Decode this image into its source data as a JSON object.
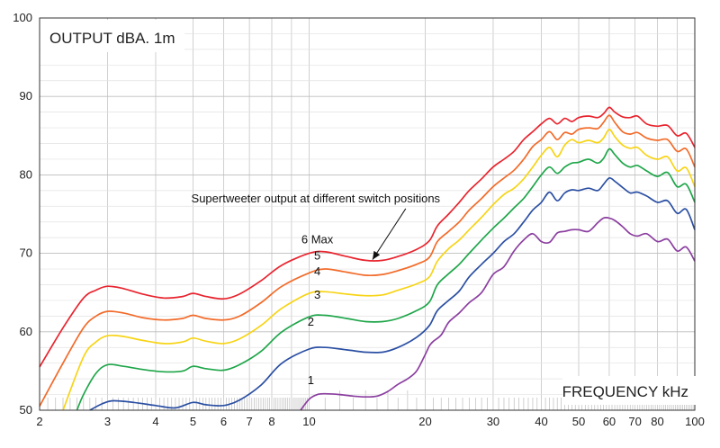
{
  "chart_data": {
    "type": "line",
    "title": "OUTPUT dBA. 1m",
    "xlabel": "FREQUENCY kHz",
    "ylabel": "",
    "xscale": "log",
    "xlim": [
      2,
      100
    ],
    "ylim": [
      50,
      100
    ],
    "x_ticks": [
      2,
      3,
      4,
      5,
      6,
      7,
      8,
      10,
      20,
      30,
      40,
      50,
      60,
      70,
      80,
      100
    ],
    "x_tick_labels": [
      "2",
      "3",
      "4",
      "5",
      "6",
      "7",
      "8",
      "10",
      "20",
      "30",
      "40",
      "50",
      "60",
      "70",
      "80",
      "100"
    ],
    "y_ticks": [
      50,
      60,
      70,
      80,
      90,
      100
    ],
    "y_tick_labels": [
      "50",
      "60",
      "70",
      "80",
      "90",
      "100"
    ],
    "grid": true,
    "legend": "none",
    "annotation": {
      "text": "Supertweeter output at different switch positions",
      "x": 10.4,
      "y": 76.5,
      "arrow_to": {
        "x": 14.6,
        "y": 69.2
      }
    },
    "series": [
      {
        "name": "6 Max",
        "color": "#e8242e",
        "label_at": {
          "x": 10.5,
          "y": 71.3
        },
        "x": [
          2,
          2.3,
          2.6,
          2.8,
          3,
          3.3,
          3.7,
          4.2,
          4.7,
          5,
          5.4,
          6,
          6.6,
          7.5,
          8.5,
          10,
          11,
          12.5,
          14,
          15.5,
          17,
          19,
          20.5,
          21.5,
          23,
          24.5,
          26,
          28,
          30,
          32,
          34,
          36,
          38,
          40,
          42,
          44,
          46,
          48,
          50,
          53,
          56,
          58,
          60,
          62,
          65,
          68,
          71,
          75,
          80,
          85,
          90,
          95,
          100
        ],
        "values": [
          55.5,
          60.5,
          64.3,
          65.3,
          65.8,
          65.5,
          64.8,
          64.3,
          64.5,
          64.9,
          64.5,
          64.2,
          64.8,
          66.5,
          68.5,
          70,
          70.2,
          69.6,
          69.1,
          69.1,
          69.6,
          70.5,
          71.6,
          73.5,
          75,
          76.5,
          78,
          79.5,
          81,
          82,
          83,
          84.5,
          85.5,
          86.5,
          87.2,
          86.5,
          87.2,
          86.8,
          87.3,
          87.5,
          87.3,
          87.8,
          88.6,
          88,
          87.4,
          87.3,
          87.5,
          86.5,
          86.2,
          86.3,
          85,
          85.3,
          83.5
        ]
      },
      {
        "name": "5",
        "color": "#f26b2a",
        "label_at": {
          "x": 10.5,
          "y": 69.2
        },
        "x": [
          2,
          2.3,
          2.6,
          2.8,
          3,
          3.3,
          3.7,
          4.2,
          4.7,
          5,
          5.4,
          6,
          6.6,
          7.5,
          8.5,
          10,
          11,
          12.5,
          14,
          15.5,
          17,
          19,
          20.5,
          21.5,
          23,
          24.5,
          26,
          28,
          30,
          32,
          34,
          36,
          38,
          40,
          42,
          44,
          46,
          48,
          50,
          53,
          56,
          58,
          60,
          62,
          65,
          68,
          71,
          75,
          80,
          85,
          90,
          95,
          100
        ],
        "values": [
          50.5,
          56,
          60.5,
          62,
          62.6,
          62.4,
          61.8,
          61.5,
          61.7,
          62.1,
          61.7,
          61.5,
          62,
          63.7,
          65.8,
          67.5,
          68,
          67.6,
          67.2,
          67.3,
          67.8,
          68.6,
          69.5,
          71.5,
          72.8,
          74,
          75.5,
          77,
          78.5,
          79.6,
          80.6,
          82,
          83.6,
          84.5,
          85.5,
          84.5,
          85.4,
          85.2,
          85.8,
          86,
          85.9,
          86.7,
          87.6,
          86.7,
          85.5,
          85.2,
          85.4,
          84.7,
          84.4,
          84.5,
          83,
          83.3,
          81
        ]
      },
      {
        "name": "4",
        "color": "#f7d417",
        "label_at": {
          "x": 10.5,
          "y": 67.2
        },
        "x": [
          2.3,
          2.6,
          2.8,
          3,
          3.3,
          3.7,
          4.2,
          4.7,
          5,
          5.4,
          6,
          6.6,
          7.5,
          8.5,
          10,
          11,
          12.5,
          14,
          15.5,
          17,
          19,
          20.5,
          21.5,
          23,
          24.5,
          26,
          28,
          30,
          32,
          34,
          36,
          38,
          40,
          42,
          44,
          46,
          48,
          50,
          53,
          56,
          58,
          60,
          62,
          65,
          68,
          71,
          75,
          80,
          85,
          90,
          95,
          100
        ],
        "values": [
          50,
          56.8,
          58.7,
          59.5,
          59.4,
          58.9,
          58.5,
          58.7,
          59.2,
          58.8,
          58.5,
          59.1,
          60.8,
          63,
          64.9,
          65.1,
          64.8,
          64.6,
          64.7,
          65.3,
          66.1,
          67,
          69,
          70.6,
          71.7,
          73,
          74.6,
          76.2,
          77.5,
          78.3,
          79.5,
          81,
          82.5,
          83.5,
          82.3,
          83.8,
          84.5,
          84.1,
          84.4,
          84.1,
          84.7,
          85.8,
          84.9,
          83.8,
          83.4,
          83.5,
          82.5,
          82,
          82.3,
          80.5,
          80.9,
          78.5
        ]
      },
      {
        "name": "3",
        "color": "#1fa64a",
        "label_at": {
          "x": 10.5,
          "y": 64.2
        },
        "x": [
          2.5,
          2.6,
          2.8,
          3,
          3.3,
          3.7,
          4.2,
          4.7,
          5,
          5.4,
          6,
          6.6,
          7.5,
          8.5,
          10,
          11,
          12.5,
          14,
          15.5,
          17,
          19,
          20.5,
          21.5,
          23,
          24.5,
          26,
          28,
          30,
          32,
          34,
          36,
          38,
          40,
          42,
          44,
          46,
          48,
          50,
          53,
          56,
          58,
          60,
          62,
          65,
          68,
          71,
          75,
          80,
          85,
          90,
          95,
          100
        ],
        "values": [
          50,
          52,
          54.7,
          55.8,
          55.6,
          55.2,
          54.9,
          55,
          55.6,
          55.3,
          55.1,
          55.8,
          57.5,
          60,
          61.9,
          62.1,
          61.7,
          61.3,
          61.3,
          61.7,
          62.7,
          63.8,
          66,
          67.4,
          68.6,
          70,
          71.7,
          73.2,
          74.5,
          75.8,
          77,
          78.5,
          80,
          81,
          80.2,
          81,
          81.5,
          81.6,
          82,
          81.5,
          82.1,
          83.3,
          82.6,
          81.5,
          81,
          81.2,
          80.5,
          79.8,
          80.3,
          78.5,
          78.8,
          76.5
        ]
      },
      {
        "name": "2",
        "color": "#2b4fa3",
        "label_at": {
          "x": 10.1,
          "y": 60.8
        },
        "x": [
          2.7,
          2.9,
          3.1,
          3.5,
          4,
          4.5,
          5,
          5.4,
          6,
          6.6,
          7.5,
          8.5,
          10,
          11,
          12.5,
          14,
          15.5,
          17,
          19,
          20.5,
          21.5,
          23,
          24.5,
          26,
          28,
          30,
          32,
          34,
          36,
          38,
          40,
          42,
          44,
          46,
          48,
          50,
          53,
          56,
          58,
          60,
          62,
          65,
          68,
          71,
          75,
          80,
          85,
          90,
          95,
          100
        ],
        "values": [
          50,
          50.8,
          51.2,
          51,
          50.6,
          50.3,
          51,
          50.7,
          50.6,
          51.3,
          53.2,
          56,
          57.8,
          58,
          57.7,
          57.4,
          57.4,
          58,
          59.3,
          60.8,
          62.7,
          64,
          65.2,
          67,
          68.6,
          70,
          71.5,
          72.5,
          74,
          75.5,
          76.5,
          77.8,
          76.7,
          77.7,
          78.1,
          78,
          78.3,
          78,
          78.8,
          79.6,
          79.2,
          78.4,
          77.7,
          77.8,
          77.3,
          76.5,
          76.7,
          75.1,
          75.6,
          73
        ]
      },
      {
        "name": "1",
        "color": "#8b3fa0",
        "label_at": {
          "x": 10.1,
          "y": 53.3
        },
        "x": [
          9.5,
          10,
          10.5,
          11,
          12,
          13,
          14,
          15,
          16,
          17,
          18,
          19,
          20,
          20.5,
          21,
          22,
          23,
          24.5,
          26,
          28,
          30,
          32,
          34,
          36,
          38,
          40,
          42,
          44,
          46,
          48,
          50,
          53,
          56,
          58,
          60,
          62,
          65,
          68,
          71,
          75,
          80,
          85,
          90,
          95,
          100
        ],
        "values": [
          50,
          51.4,
          52,
          52.1,
          52,
          51.8,
          51.7,
          51.8,
          52.4,
          53.3,
          54,
          55,
          57.1,
          58.2,
          58.8,
          59.6,
          61.2,
          62.4,
          63.7,
          65,
          67.3,
          68.3,
          70.3,
          71.7,
          72.5,
          71.5,
          71.4,
          72.6,
          72.8,
          73,
          73,
          72.8,
          73.9,
          74.5,
          74.5,
          74.2,
          73.4,
          72.5,
          72.2,
          72.5,
          71.5,
          71.8,
          70.3,
          70.8,
          69
        ]
      }
    ]
  }
}
